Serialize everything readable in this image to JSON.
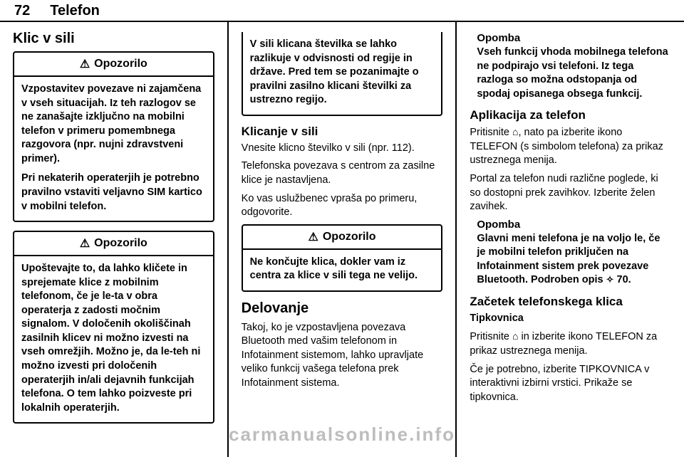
{
  "header": {
    "page_number": "72",
    "chapter": "Telefon"
  },
  "col1": {
    "section_title": "Klic v sili",
    "warn1": {
      "label": "Opozorilo",
      "p1": "Vzpostavitev povezave ni zajamčena v vseh situacijah. Iz teh razlogov se ne zanašajte izključno na mobilni telefon v primeru pomembnega razgovora (npr. nujni zdravstveni primer).",
      "p2": "Pri nekaterih operaterjih je potrebno pravilno vstaviti veljavno SIM kartico v mobilni telefon."
    },
    "warn2": {
      "label": "Opozorilo",
      "p1": "Upoštevajte to, da lahko kličete in sprejemate klice z mobilnim telefonom, če je le-ta v obra operaterja z zadosti močnim signalom. V določenih okoliščinah zasilnih klicev ni možno izvesti na vseh omrežjih. Možno je, da le-teh ni možno izvesti pri določenih operaterjih in/ali dejavnih funkcijah telefona. O tem lahko poizveste pri lokalnih operaterjih."
    }
  },
  "col2": {
    "warn_top": "V sili klicana številka se lahko razlikuje v odvisnosti od regije in države. Pred tem se pozanimajte o pravilni zasilno klicani številki za ustrezno regijo.",
    "sub1": "Klicanje v sili",
    "p1": "Vnesite klicno številko v sili (npr. 112).",
    "p2": "Telefonska povezava s centrom za zasilne klice je nastavljena.",
    "p3": "Ko vas uslužbenec vpraša po primeru, odgovorite.",
    "warn3": {
      "label": "Opozorilo",
      "p1": "Ne končujte klica, dokler vam iz centra za klice v sili tega ne velijo."
    },
    "section_title": "Delovanje",
    "p4": "Takoj, ko je vzpostavljena povezava Bluetooth med vašim telefonom in Infotainment sistemom, lahko upravljate veliko funkcij vašega telefona prek Infotainment sistema."
  },
  "col3": {
    "note1": {
      "title": "Opomba",
      "body": "Vseh funkcij vhoda mobilnega telefona ne podpirajo vsi telefoni. Iz tega razloga so možna odstopanja od spodaj opisanega obsega funkcij."
    },
    "sub1": "Aplikacija za telefon",
    "p1a": "Pritisnite ",
    "p1b": ", nato pa izberite ikono TELEFON (s simbolom telefona) za prikaz ustreznega menija.",
    "p2": "Portal za telefon nudi različne poglede, ki so dostopni prek zavihkov. Izberite želen zavihek.",
    "note2": {
      "title": "Opomba",
      "body_a": "Glavni meni telefona je na voljo le, če je mobilni telefon priključen na Infotainment sistem prek povezave Bluetooth. Podroben opis ",
      "body_ref": "70.",
      "ref_icon": "✧"
    },
    "sub2": "Začetek telefonskega klica",
    "sub3": "Tipkovnica",
    "p3a": "Pritisnite ",
    "p3b": " in izberite ikono TELEFON za prikaz ustreznega menija.",
    "p4": "Če je potrebno, izberite TIPKOVNICA v interaktivni izbirni vrstici. Prikaže se tipkovnica."
  },
  "icons": {
    "warn_triangle": "⚠",
    "home": "⌂"
  },
  "watermark": "carmanualsonline.info",
  "colors": {
    "text": "#000000",
    "bg": "#ffffff",
    "watermark": "#bdbdbd"
  }
}
